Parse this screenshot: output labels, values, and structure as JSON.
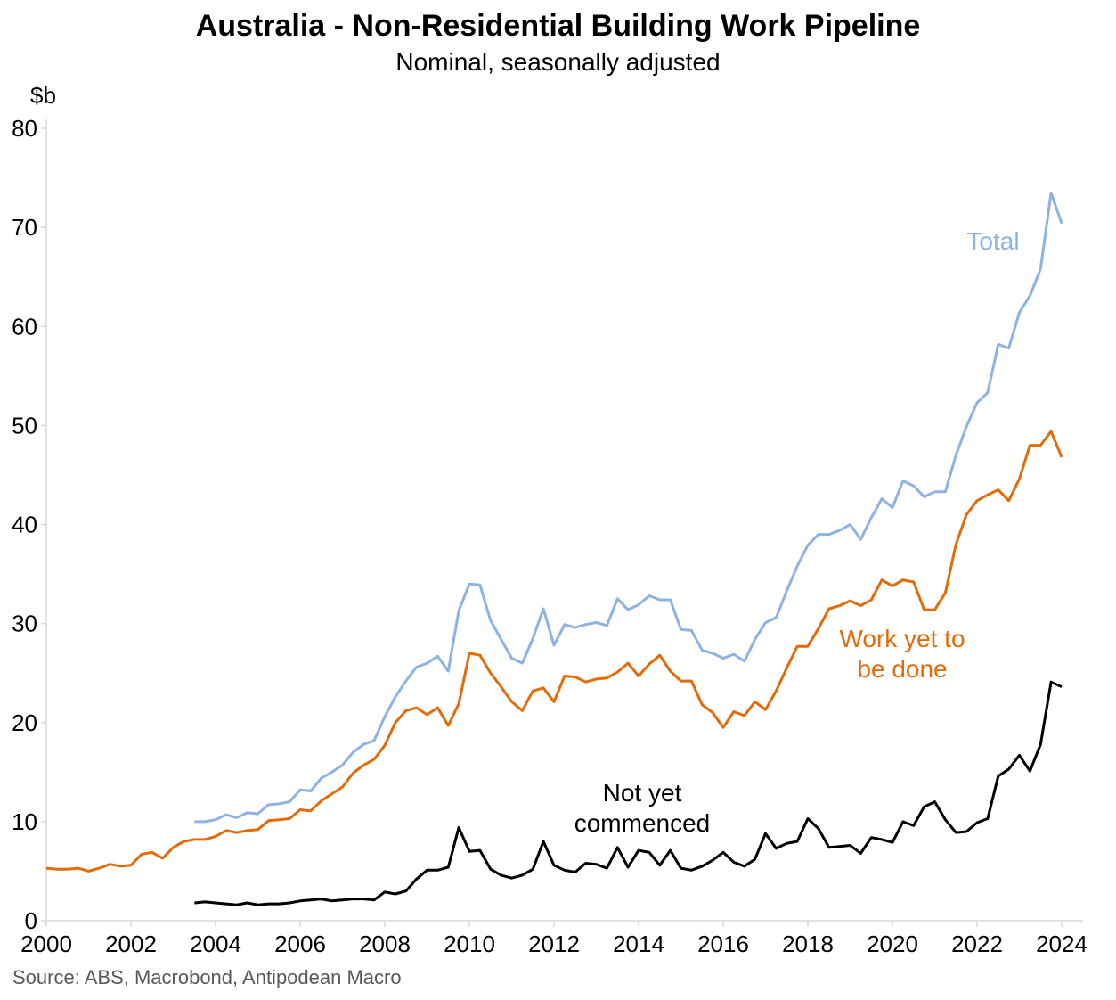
{
  "chart_data": {
    "type": "line",
    "title": "Australia - Non-Residential Building Work Pipeline",
    "subtitle": "Nominal, seasonally adjusted",
    "ylabel": "$b",
    "xlabel": "",
    "source": "Source: ABS, Macrobond, Antipodean Macro",
    "xlim": [
      2000,
      2024.5
    ],
    "ylim": [
      0,
      80
    ],
    "x_ticks": [
      "2000",
      "2002",
      "2004",
      "2006",
      "2008",
      "2010",
      "2012",
      "2014",
      "2016",
      "2018",
      "2020",
      "2022",
      "2024"
    ],
    "y_ticks": [
      "0",
      "10",
      "20",
      "30",
      "40",
      "50",
      "60",
      "70",
      "80"
    ],
    "grid": false,
    "series": [
      {
        "name": "Total",
        "color": "#8db3e2",
        "start": 2003.5,
        "step": 0.25,
        "values": [
          10.0,
          10.0,
          10.2,
          10.7,
          10.4,
          10.9,
          10.8,
          11.7,
          11.8,
          12.0,
          13.2,
          13.1,
          14.4,
          15.0,
          15.7,
          17.0,
          17.8,
          18.2,
          20.6,
          22.6,
          24.2,
          25.6,
          26.0,
          26.7,
          25.2,
          31.3,
          34.0,
          33.9,
          30.3,
          28.4,
          26.5,
          26.0,
          28.5,
          31.5,
          27.8,
          29.9,
          29.6,
          29.9,
          30.1,
          29.8,
          32.5,
          31.4,
          31.9,
          32.8,
          32.4,
          32.4,
          29.4,
          29.3,
          27.3,
          27.0,
          26.5,
          26.9,
          26.2,
          28.4,
          30.1,
          30.6,
          33.3,
          35.8,
          37.9,
          39.0,
          39.0,
          39.4,
          40.0,
          38.5,
          40.7,
          42.6,
          41.7,
          44.4,
          43.9,
          42.8,
          43.3,
          43.3,
          47.0,
          49.9,
          52.3,
          53.3,
          58.2,
          57.8,
          61.4,
          63.1,
          65.8,
          73.5,
          70.4
        ]
      },
      {
        "name": "Work yet to be done",
        "color": "#e36c0a",
        "start": 2000.0,
        "step": 0.25,
        "values": [
          5.3,
          5.2,
          5.2,
          5.3,
          5.0,
          5.3,
          5.7,
          5.5,
          5.6,
          6.7,
          6.9,
          6.3,
          7.4,
          8.0,
          8.2,
          8.2,
          8.5,
          9.1,
          8.9,
          9.1,
          9.2,
          10.1,
          10.2,
          10.3,
          11.2,
          11.1,
          12.1,
          12.8,
          13.5,
          14.9,
          15.7,
          16.3,
          17.7,
          20.0,
          21.2,
          21.5,
          20.8,
          21.5,
          19.7,
          21.9,
          27.0,
          26.8,
          25.0,
          23.6,
          22.1,
          21.2,
          23.2,
          23.5,
          22.1,
          24.7,
          24.6,
          24.1,
          24.4,
          24.5,
          25.1,
          26.0,
          24.7,
          25.9,
          26.8,
          25.2,
          24.2,
          24.2,
          21.8,
          21.0,
          19.5,
          21.1,
          20.7,
          22.1,
          21.3,
          23.2,
          25.5,
          27.7,
          27.7,
          29.5,
          31.5,
          31.8,
          32.3,
          31.8,
          32.4,
          34.4,
          33.8,
          34.4,
          34.2,
          31.4,
          31.4,
          33.1,
          38.0,
          41.0,
          42.4,
          43.0,
          43.5,
          42.4,
          44.6,
          48.0,
          48.0,
          49.4,
          46.8
        ]
      },
      {
        "name": "Not yet commenced",
        "color": "#000000",
        "start": 2003.5,
        "step": 0.25,
        "values": [
          1.8,
          1.9,
          1.8,
          1.7,
          1.6,
          1.8,
          1.6,
          1.7,
          1.7,
          1.8,
          2.0,
          2.1,
          2.2,
          2.0,
          2.1,
          2.2,
          2.2,
          2.1,
          2.9,
          2.7,
          3.0,
          4.2,
          5.1,
          5.1,
          5.4,
          9.4,
          7.0,
          7.1,
          5.2,
          4.6,
          4.3,
          4.6,
          5.2,
          8.0,
          5.6,
          5.1,
          4.9,
          5.8,
          5.7,
          5.3,
          7.4,
          5.4,
          7.1,
          6.9,
          5.6,
          7.1,
          5.3,
          5.1,
          5.5,
          6.1,
          6.9,
          5.9,
          5.5,
          6.2,
          8.8,
          7.3,
          7.8,
          8.0,
          10.3,
          9.3,
          7.4,
          7.5,
          7.6,
          6.8,
          8.4,
          8.2,
          7.9,
          10.0,
          9.6,
          11.5,
          12.0,
          10.2,
          8.9,
          9.0,
          9.9,
          10.3,
          14.6,
          15.3,
          16.7,
          15.1,
          17.8,
          24.1,
          23.6
        ]
      }
    ],
    "annotations": {
      "total": "Total",
      "wytbd_line1": "Work yet to",
      "wytbd_line2": "be done",
      "nyc_line1": "Not yet",
      "nyc_line2": "commenced"
    }
  }
}
